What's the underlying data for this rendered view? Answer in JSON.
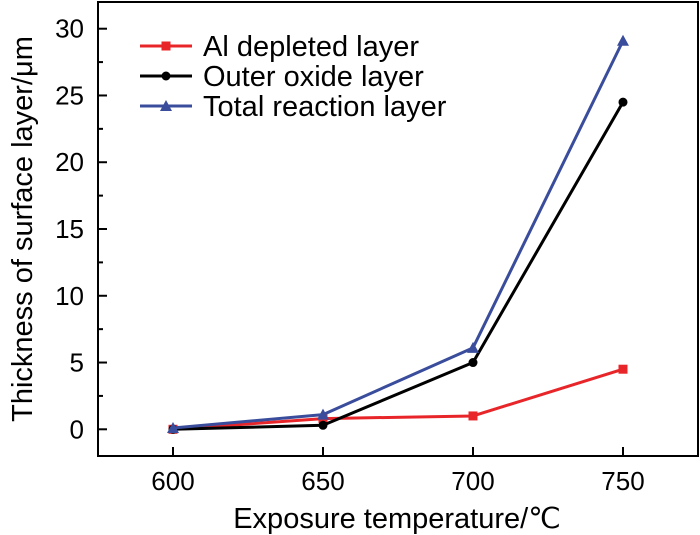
{
  "chart_data": {
    "type": "line",
    "title": "",
    "xlabel": "Exposure temperature/℃",
    "ylabel": "Thickness of surface layer/μm",
    "x": [
      600,
      650,
      700,
      750
    ],
    "xlim": [
      575,
      775
    ],
    "ylim": [
      -2,
      32
    ],
    "xticks": [
      600,
      650,
      700,
      750
    ],
    "yticks": [
      0,
      5,
      10,
      15,
      20,
      25,
      30
    ],
    "xtick_labels": [
      "600",
      "650",
      "700",
      "750"
    ],
    "ytick_labels": [
      "0",
      "5",
      "10",
      "15",
      "20",
      "25",
      "30"
    ],
    "grid": false,
    "legend_position": "top-left",
    "series": [
      {
        "name": "Al depleted layer",
        "values": [
          0.0,
          0.8,
          1.0,
          4.5
        ],
        "color": "#e8262a",
        "marker": "square"
      },
      {
        "name": "Outer oxide layer",
        "values": [
          0.0,
          0.3,
          5.0,
          24.5
        ],
        "color": "#000000",
        "marker": "circle"
      },
      {
        "name": "Total reaction layer",
        "values": [
          0.1,
          1.1,
          6.1,
          29.1
        ],
        "color": "#3a4d9c",
        "marker": "triangle"
      }
    ]
  }
}
